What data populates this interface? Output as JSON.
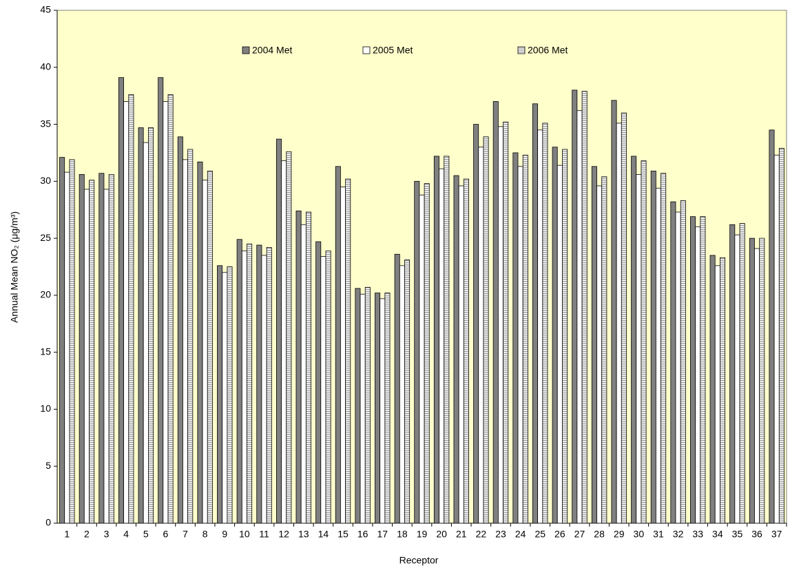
{
  "chart_data": {
    "type": "bar",
    "x_label": "Receptor",
    "y_label": "Annual Mean NO₂ (μg/m³)",
    "categories": [
      "1",
      "2",
      "3",
      "4",
      "5",
      "6",
      "7",
      "8",
      "9",
      "10",
      "11",
      "12",
      "13",
      "14",
      "15",
      "16",
      "17",
      "18",
      "19",
      "20",
      "21",
      "22",
      "23",
      "24",
      "25",
      "26",
      "27",
      "28",
      "29",
      "30",
      "31",
      "32",
      "33",
      "34",
      "35",
      "36",
      "37"
    ],
    "series": [
      {
        "name": "2004 Met",
        "color": "#808080",
        "values": [
          32.1,
          30.6,
          30.7,
          39.1,
          34.7,
          39.1,
          33.9,
          31.7,
          22.6,
          24.9,
          24.4,
          33.7,
          27.4,
          24.7,
          31.3,
          20.6,
          20.2,
          23.6,
          30.0,
          32.2,
          30.5,
          35.0,
          37.0,
          32.5,
          36.8,
          33.0,
          38.0,
          31.3,
          37.1,
          32.2,
          30.9,
          28.2,
          26.9,
          23.5,
          26.2,
          25.0,
          34.5
        ]
      },
      {
        "name": "2005 Met",
        "color": "#ffffff",
        "values": [
          30.8,
          29.3,
          29.3,
          37.0,
          33.4,
          37.0,
          31.9,
          30.1,
          22.0,
          23.9,
          23.5,
          31.8,
          26.2,
          23.4,
          29.5,
          20.1,
          19.7,
          22.6,
          28.8,
          31.1,
          29.6,
          33.0,
          34.8,
          31.3,
          34.5,
          31.4,
          36.2,
          29.6,
          35.1,
          30.6,
          29.4,
          27.3,
          26.0,
          22.6,
          25.3,
          24.1,
          32.3
        ]
      },
      {
        "name": "2006 Met",
        "color": "#a0a0a0",
        "hatch": "horizontal",
        "values": [
          31.9,
          30.1,
          30.6,
          37.6,
          34.7,
          37.6,
          32.8,
          30.9,
          22.5,
          24.5,
          24.2,
          32.6,
          27.3,
          23.9,
          30.2,
          20.7,
          20.2,
          23.1,
          29.8,
          32.2,
          30.2,
          33.9,
          35.2,
          32.3,
          35.1,
          32.8,
          37.9,
          30.4,
          36.0,
          31.8,
          30.7,
          28.3,
          26.9,
          23.3,
          26.3,
          25.0,
          32.9
        ]
      }
    ],
    "ylim": [
      0,
      45
    ],
    "yticks": [
      0,
      5,
      10,
      15,
      20,
      25,
      30,
      35,
      40,
      45
    ],
    "grid": false,
    "legend": "top",
    "plot_background": "#ffffcc"
  }
}
